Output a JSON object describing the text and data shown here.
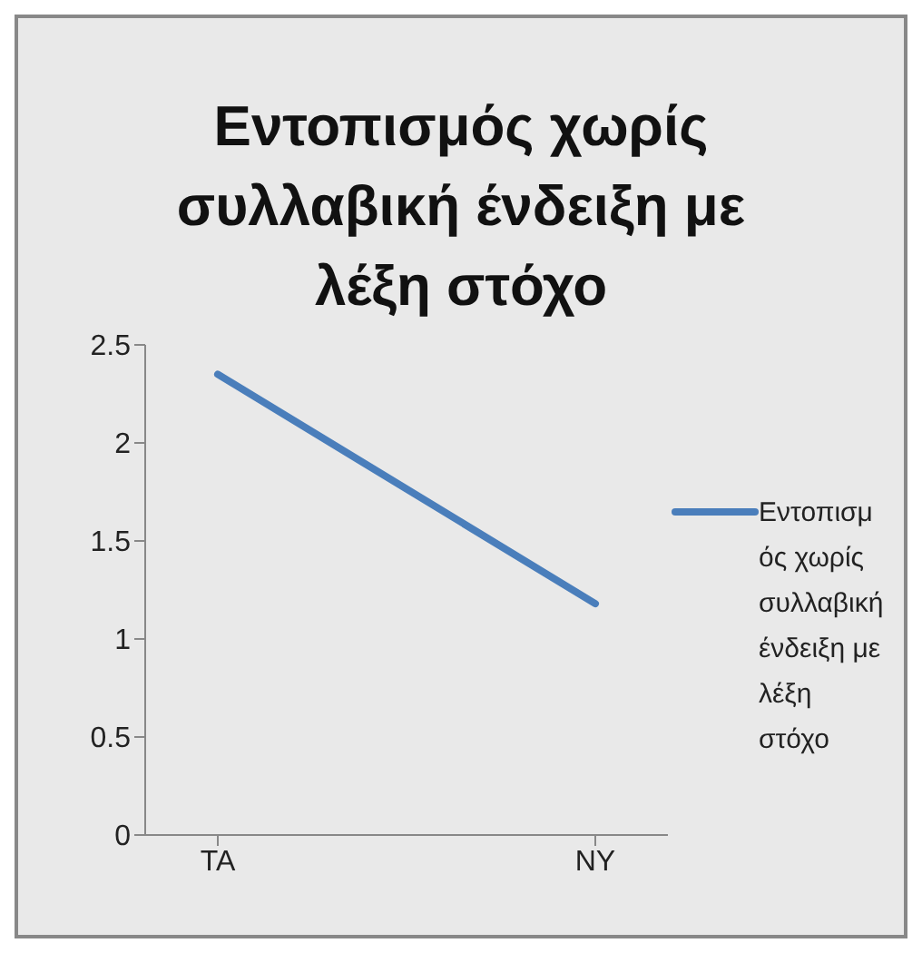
{
  "chart_data": {
    "type": "line",
    "title": "Εντοπισμός χωρίς συλλαβική ένδειξη με λέξη στόχο",
    "categories": [
      "TA",
      "NY"
    ],
    "series": [
      {
        "name": "Εντοπισμός χωρίς συλλαβική ένδειξη με λέξη στόχο",
        "color": "#4a7ebb",
        "values": [
          2.35,
          1.18
        ]
      }
    ],
    "ylim": [
      0,
      2.5
    ],
    "yticks": [
      0,
      0.5,
      1,
      1.5,
      2,
      2.5
    ],
    "grid": false,
    "legend": "right",
    "marker": "none"
  }
}
